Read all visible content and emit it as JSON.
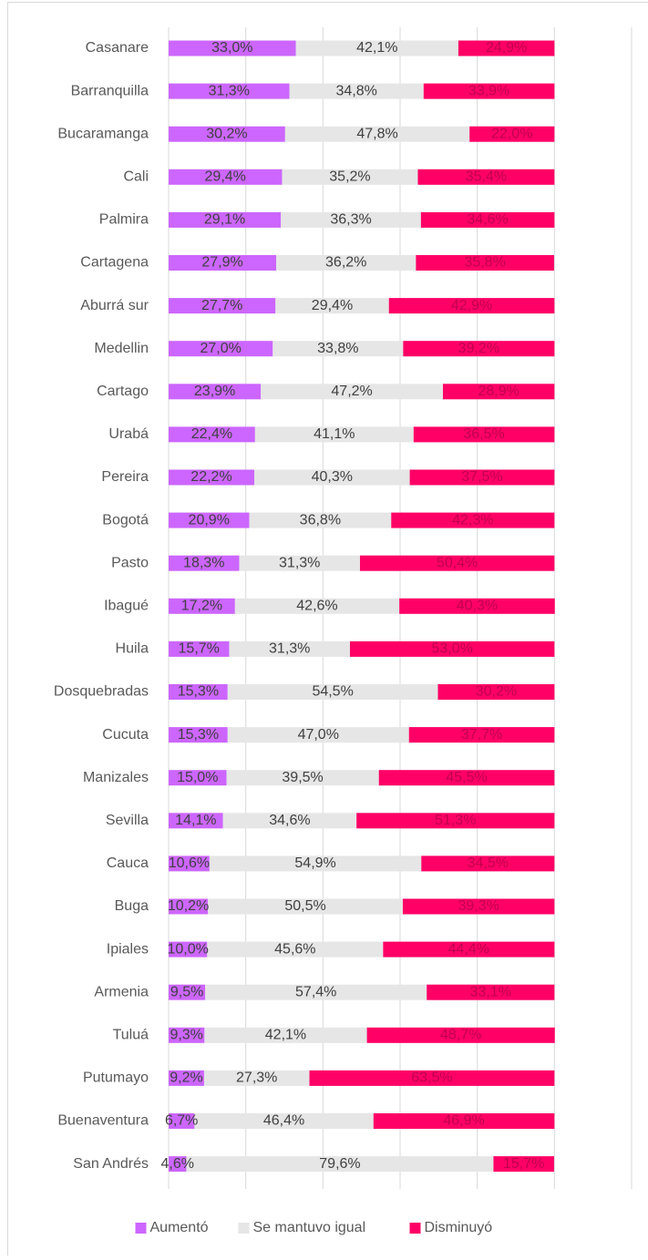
{
  "chart_data": {
    "type": "stacked-bar-horizontal",
    "categories": [
      "Casanare",
      "Barranquilla",
      "Bucaramanga",
      "Cali",
      "Palmira",
      "Cartagena",
      "Aburrá sur",
      "Medellin",
      "Cartago",
      "Urabá",
      "Pereira",
      "Bogotá",
      "Pasto",
      "Ibagué",
      "Huila",
      "Dosquebradas",
      "Cucuta",
      "Manizales",
      "Sevilla",
      "Cauca",
      "Buga",
      "Ipiales",
      "Armenia",
      "Tuluá",
      "Putumayo",
      "Buenaventura",
      "San Andrés"
    ],
    "series": [
      {
        "name": "Aumentó",
        "color": "#cc66ff",
        "label_color": "#404040",
        "values": [
          33.0,
          31.3,
          30.2,
          29.4,
          29.1,
          27.9,
          27.7,
          27.0,
          23.9,
          22.4,
          22.2,
          20.9,
          18.3,
          17.2,
          15.7,
          15.3,
          15.3,
          15.0,
          14.1,
          10.6,
          10.2,
          10.0,
          9.5,
          9.3,
          9.2,
          6.7,
          4.6
        ],
        "value_labels": [
          "33,0%",
          "31,3%",
          "30,2%",
          "29,4%",
          "29,1%",
          "27,9%",
          "27,7%",
          "27,0%",
          "23,9%",
          "22,4%",
          "22,2%",
          "20,9%",
          "18,3%",
          "17,2%",
          "15,7%",
          "15,3%",
          "15,3%",
          "15,0%",
          "14,1%",
          "10,6%",
          "10,2%",
          "10,0%",
          "9,5%",
          "9,3%",
          "9,2%",
          "6,7%",
          "4,6%"
        ]
      },
      {
        "name": "Se mantuvo igual",
        "color": "#e6e6e6",
        "label_color": "#404040",
        "values": [
          42.1,
          34.8,
          47.8,
          35.2,
          36.3,
          36.2,
          29.4,
          33.8,
          47.2,
          41.1,
          40.3,
          36.8,
          31.3,
          42.6,
          31.3,
          54.5,
          47.0,
          39.5,
          34.6,
          54.9,
          50.5,
          45.6,
          57.4,
          42.1,
          27.3,
          46.4,
          79.6
        ],
        "value_labels": [
          "42,1%",
          "34,8%",
          "47,8%",
          "35,2%",
          "36,3%",
          "36,2%",
          "29,4%",
          "33,8%",
          "47,2%",
          "41,1%",
          "40,3%",
          "36,8%",
          "31,3%",
          "42,6%",
          "31,3%",
          "54,5%",
          "47,0%",
          "39,5%",
          "34,6%",
          "54,9%",
          "50,5%",
          "45,6%",
          "57,4%",
          "42,1%",
          "27,3%",
          "46,4%",
          "79,6%"
        ]
      },
      {
        "name": "Disminuyó",
        "color": "#ff0066",
        "label_color": "#c0004d",
        "values": [
          24.9,
          33.9,
          22.0,
          35.4,
          34.6,
          35.8,
          42.9,
          39.2,
          28.9,
          36.5,
          37.5,
          42.3,
          50.4,
          40.3,
          53.0,
          30.2,
          37.7,
          45.5,
          51.3,
          34.5,
          39.3,
          44.4,
          33.1,
          48.7,
          63.5,
          46.9,
          15.7
        ],
        "value_labels": [
          "24,9%",
          "33,9%",
          "22,0%",
          "35,4%",
          "34,6%",
          "35,8%",
          "42,9%",
          "39,2%",
          "28,9%",
          "36,5%",
          "37,5%",
          "42,3%",
          "50,4%",
          "40,3%",
          "53,0%",
          "30,2%",
          "37,7%",
          "45,5%",
          "51,3%",
          "34,5%",
          "39,3%",
          "44,4%",
          "33,1%",
          "48,7%",
          "63,5%",
          "46,9%",
          "15,7%"
        ]
      }
    ],
    "xlim": [
      0,
      120
    ],
    "xticks": [
      0,
      20,
      40,
      60,
      80,
      100,
      120
    ],
    "grid": true,
    "legend": "bottom"
  }
}
